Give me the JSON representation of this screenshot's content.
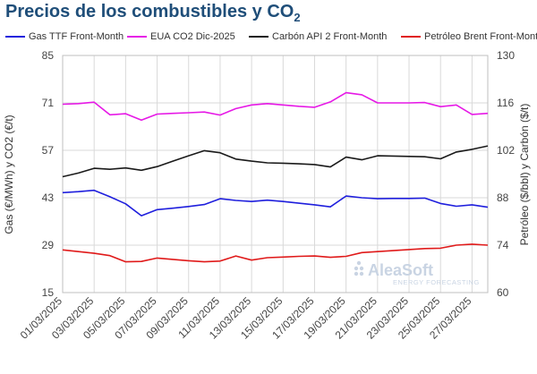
{
  "title": {
    "main": "Precios de los combustibles y CO",
    "sub": "2"
  },
  "watermark": {
    "brand": "AleaSoft",
    "tagline": "ENERGY FORECASTING"
  },
  "chart_data": {
    "type": "line",
    "title": "Precios de los combustibles y CO2",
    "legend_position": "top",
    "grid": true,
    "left_axis": {
      "label": "Gas (€/MWh) y CO2 (€/t)",
      "ylim": [
        15,
        85
      ],
      "ticks": [
        "15",
        "29",
        "43",
        "57",
        "71",
        "85"
      ]
    },
    "right_axis": {
      "label": "Petróleo ($/bbl) y Carbón ($/t)",
      "ylim": [
        60,
        130
      ],
      "ticks": [
        "60",
        "74",
        "88",
        "102",
        "116",
        "130"
      ]
    },
    "x": [
      "01/03/2025",
      "02/03/2025",
      "03/03/2025",
      "04/03/2025",
      "05/03/2025",
      "06/03/2025",
      "07/03/2025",
      "08/03/2025",
      "09/03/2025",
      "10/03/2025",
      "11/03/2025",
      "12/03/2025",
      "13/03/2025",
      "14/03/2025",
      "15/03/2025",
      "16/03/2025",
      "17/03/2025",
      "18/03/2025",
      "19/03/2025",
      "20/03/2025",
      "21/03/2025",
      "22/03/2025",
      "23/03/2025",
      "24/03/2025",
      "25/03/2025",
      "26/03/2025",
      "27/03/2025",
      "28/03/2025"
    ],
    "x_tick_labels": [
      "01/03/2025",
      "03/03/2025",
      "05/03/2025",
      "07/03/2025",
      "09/03/2025",
      "11/03/2025",
      "13/03/2025",
      "15/03/2025",
      "17/03/2025",
      "19/03/2025",
      "21/03/2025",
      "23/03/2025",
      "25/03/2025",
      "27/03/2025"
    ],
    "series": [
      {
        "name": "Gas TTF Front-Month",
        "axis": "left",
        "color": "#1f1fdd",
        "values": [
          44.5,
          44.8,
          45.2,
          43.3,
          41.2,
          37.7,
          39.5,
          39.9,
          40.4,
          41.0,
          42.7,
          42.2,
          41.9,
          42.3,
          41.9,
          41.4,
          40.9,
          40.3,
          43.5,
          43.0,
          42.7,
          42.8,
          42.8,
          42.9,
          41.3,
          40.5,
          40.9,
          40.2
        ]
      },
      {
        "name": "EUA CO2 Dic-2025",
        "axis": "left",
        "color": "#e619e6",
        "values": [
          70.6,
          70.8,
          71.2,
          67.5,
          67.8,
          65.9,
          67.7,
          67.9,
          68.1,
          68.3,
          67.4,
          69.3,
          70.4,
          70.8,
          70.4,
          70.0,
          69.7,
          71.3,
          74.0,
          73.4,
          71.0,
          71.0,
          71.0,
          71.1,
          69.9,
          70.4,
          67.6,
          67.9
        ]
      },
      {
        "name": "Carbón API 2 Front-Month",
        "axis": "right",
        "color": "#1a1a1a",
        "values": [
          94.2,
          95.3,
          96.7,
          96.4,
          96.8,
          96.1,
          97.2,
          98.8,
          100.4,
          101.9,
          101.3,
          99.4,
          98.8,
          98.3,
          98.2,
          98.0,
          97.8,
          97.1,
          100.0,
          99.2,
          100.4,
          100.3,
          100.2,
          100.1,
          99.5,
          101.5,
          102.3,
          103.3
        ]
      },
      {
        "name": "Petróleo Brent Front-Month",
        "axis": "right",
        "color": "#e01a1a",
        "values": [
          72.6,
          72.1,
          71.6,
          70.9,
          69.1,
          69.2,
          70.2,
          69.8,
          69.4,
          69.1,
          69.3,
          70.8,
          69.6,
          70.3,
          70.5,
          70.7,
          70.8,
          70.4,
          70.7,
          71.8,
          72.1,
          72.4,
          72.7,
          73.0,
          73.1,
          74.0,
          74.3,
          74.0
        ]
      }
    ]
  }
}
